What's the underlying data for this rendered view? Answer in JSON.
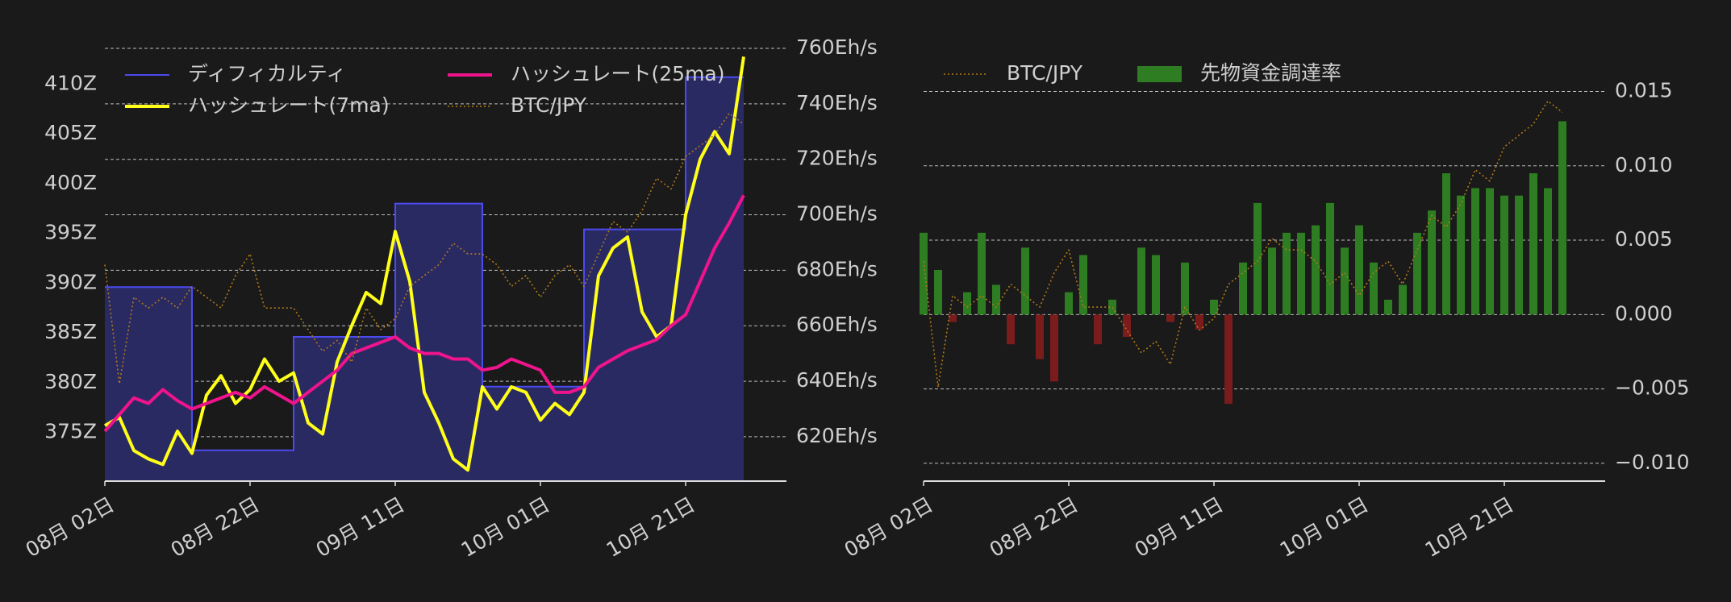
{
  "chart_data": [
    {
      "type": "line",
      "x": [
        "08-02",
        "08-04",
        "08-06",
        "08-08",
        "08-10",
        "08-12",
        "08-14",
        "08-16",
        "08-18",
        "08-20",
        "08-22",
        "08-24",
        "08-26",
        "08-28",
        "08-30",
        "09-01",
        "09-03",
        "09-05",
        "09-07",
        "09-09",
        "09-11",
        "09-13",
        "09-15",
        "09-17",
        "09-19",
        "09-21",
        "09-23",
        "09-25",
        "09-27",
        "09-29",
        "10-01",
        "10-03",
        "10-05",
        "10-07",
        "10-09",
        "10-11",
        "10-13",
        "10-15",
        "10-17",
        "10-19",
        "10-21",
        "10-23",
        "10-25",
        "10-27",
        "10-29"
      ],
      "xticks": [
        {
          "value": "08-02",
          "label": "08月 02日"
        },
        {
          "value": "08-22",
          "label": "08月 22日"
        },
        {
          "value": "09-11",
          "label": "09月 11日"
        },
        {
          "value": "10-01",
          "label": "10月 01日"
        },
        {
          "value": "10-21",
          "label": "10月 21日"
        }
      ],
      "ylim": [
        370.1,
        413.6
      ],
      "yticks": [
        {
          "value": 375,
          "label": "375Z"
        },
        {
          "value": 380,
          "label": "380Z"
        },
        {
          "value": 385,
          "label": "385Z"
        },
        {
          "value": 390,
          "label": "390Z"
        },
        {
          "value": 395,
          "label": "395Z"
        },
        {
          "value": 400,
          "label": "400Z"
        },
        {
          "value": 405,
          "label": "405Z"
        },
        {
          "value": 410,
          "label": "410Z"
        }
      ],
      "y2lim": [
        604,
        760
      ],
      "y2ticks": [
        {
          "value": 620,
          "label": "620Eh/s"
        },
        {
          "value": 640,
          "label": "640Eh/s"
        },
        {
          "value": 660,
          "label": "660Eh/s"
        },
        {
          "value": 680,
          "label": "680Eh/s"
        },
        {
          "value": 700,
          "label": "700Eh/s"
        },
        {
          "value": 720,
          "label": "720Eh/s"
        },
        {
          "value": 740,
          "label": "740Eh/s"
        },
        {
          "value": 760,
          "label": "760Eh/s"
        }
      ],
      "y3lim": [
        7000000,
        11000000
      ],
      "grid": "y2",
      "legend": "upper left",
      "series": [
        {
          "name": "ディフィカルティ",
          "type": "step",
          "axis": "y",
          "color": "#4b4bef",
          "fill": "#2a2a62",
          "values": [
            389.6,
            389.6,
            389.6,
            389.6,
            389.6,
            389.6,
            373.2,
            373.2,
            373.2,
            373.2,
            373.2,
            373.2,
            373.2,
            384.6,
            384.6,
            384.6,
            384.6,
            384.6,
            384.6,
            384.6,
            398.0,
            398.0,
            398.0,
            398.0,
            398.0,
            398.0,
            379.6,
            379.6,
            379.6,
            379.6,
            379.6,
            379.6,
            379.6,
            395.4,
            395.4,
            395.4,
            395.4,
            395.4,
            395.4,
            395.4,
            410.7,
            410.7,
            410.7,
            410.7,
            410.7
          ]
        },
        {
          "name": "ハッシュレート(7ma)",
          "type": "line",
          "axis": "y2",
          "color": "#ffff1a",
          "values": [
            624,
            627,
            615,
            612,
            610,
            622,
            614,
            635,
            642,
            632,
            637,
            648,
            640,
            643,
            625,
            621,
            647,
            660,
            672,
            668,
            694,
            676,
            636,
            625,
            612,
            608,
            638,
            630,
            638,
            636,
            626,
            632,
            628,
            636,
            678,
            688,
            692,
            665,
            656,
            660,
            700,
            720,
            730,
            722,
            757
          ]
        },
        {
          "name": "ハッシュレート(25ma)",
          "type": "line",
          "axis": "y2",
          "color": "#f0148c",
          "values": [
            622,
            628,
            634,
            632,
            637,
            633,
            630,
            632,
            634,
            636,
            634,
            638,
            635,
            632,
            636,
            640,
            644,
            650,
            652,
            654,
            656,
            652,
            650,
            650,
            648,
            648,
            644,
            645,
            648,
            646,
            644,
            636,
            636,
            638,
            645,
            648,
            651,
            653,
            655,
            660,
            664,
            676,
            688,
            697,
            707
          ]
        },
        {
          "name": "BTC/JPY",
          "type": "line",
          "axis": "y3",
          "color": "#b07a1a",
          "dash": "dotted",
          "values": [
            9000000,
            7900000,
            8700000,
            8600000,
            8700000,
            8600000,
            8800000,
            8700000,
            8600000,
            8900000,
            9100000,
            8600000,
            8600000,
            8600000,
            8400000,
            8200000,
            8300000,
            8100000,
            8600000,
            8400000,
            8500000,
            8800000,
            8900000,
            9000000,
            9200000,
            9100000,
            9100000,
            9000000,
            8800000,
            8900000,
            8700000,
            8900000,
            9000000,
            8800000,
            9100000,
            9400000,
            9300000,
            9500000,
            9800000,
            9700000,
            10000000,
            10100000,
            10200000,
            10400000,
            10300000
          ]
        }
      ]
    },
    {
      "type": "bar",
      "x": [
        "08-02",
        "08-04",
        "08-06",
        "08-08",
        "08-10",
        "08-12",
        "08-14",
        "08-16",
        "08-18",
        "08-20",
        "08-22",
        "08-24",
        "08-26",
        "08-28",
        "08-30",
        "09-01",
        "09-03",
        "09-05",
        "09-07",
        "09-09",
        "09-11",
        "09-13",
        "09-15",
        "09-17",
        "09-19",
        "09-21",
        "09-23",
        "09-25",
        "09-27",
        "09-29",
        "10-01",
        "10-03",
        "10-05",
        "10-07",
        "10-09",
        "10-11",
        "10-13",
        "10-15",
        "10-17",
        "10-19",
        "10-21",
        "10-23",
        "10-25",
        "10-27",
        "10-29"
      ],
      "xticks": [
        {
          "value": "08-02",
          "label": "08月 02日"
        },
        {
          "value": "08-22",
          "label": "08月 22日"
        },
        {
          "value": "09-11",
          "label": "09月 11日"
        },
        {
          "value": "10-01",
          "label": "10月 01日"
        },
        {
          "value": "10-21",
          "label": "10月 21日"
        }
      ],
      "ylim": [
        -0.0112,
        0.0179
      ],
      "yticks": [
        {
          "value": -0.01,
          "label": "−0.010"
        },
        {
          "value": -0.005,
          "label": "−0.005"
        },
        {
          "value": 0,
          "label": "0.000"
        },
        0.005,
        {
          "value": 0.01,
          "label": "0.010"
        },
        0.015
      ],
      "y2lim": [
        7080000,
        10860000
      ],
      "grid": "y",
      "legend": "upper left",
      "series": [
        {
          "name": "BTC/JPY",
          "type": "line",
          "axis": "y2",
          "color": "#b07a1a",
          "dash": "dotted",
          "values": [
            9000000,
            7900000,
            8700000,
            8600000,
            8700000,
            8600000,
            8800000,
            8700000,
            8600000,
            8900000,
            9100000,
            8600000,
            8600000,
            8600000,
            8400000,
            8200000,
            8300000,
            8100000,
            8600000,
            8400000,
            8500000,
            8800000,
            8900000,
            9000000,
            9200000,
            9100000,
            9100000,
            9000000,
            8800000,
            8900000,
            8700000,
            8900000,
            9000000,
            8800000,
            9100000,
            9400000,
            9300000,
            9500000,
            9800000,
            9700000,
            10000000,
            10100000,
            10200000,
            10400000,
            10300000
          ]
        },
        {
          "name": "先物資金調達率",
          "type": "bar",
          "axis": "y",
          "color": "#2e7d22",
          "negative_color": "#7a1c1c",
          "values": [
            0.0055,
            0.003,
            -0.0005,
            0.0015,
            0.0055,
            0.002,
            -0.002,
            0.0045,
            -0.003,
            -0.0045,
            0.0015,
            0.004,
            -0.002,
            0.001,
            -0.0015,
            0.0045,
            0.004,
            -0.0005,
            0.0035,
            -0.001,
            0.001,
            -0.006,
            0.0035,
            0.0075,
            0.0045,
            0.0055,
            0.0055,
            0.006,
            0.0075,
            0.0045,
            0.006,
            0.0035,
            0.001,
            0.002,
            0.0055,
            0.007,
            0.0095,
            0.008,
            0.0085,
            0.0085,
            0.008,
            0.008,
            0.0095,
            0.0085,
            0.013
          ]
        }
      ]
    }
  ]
}
